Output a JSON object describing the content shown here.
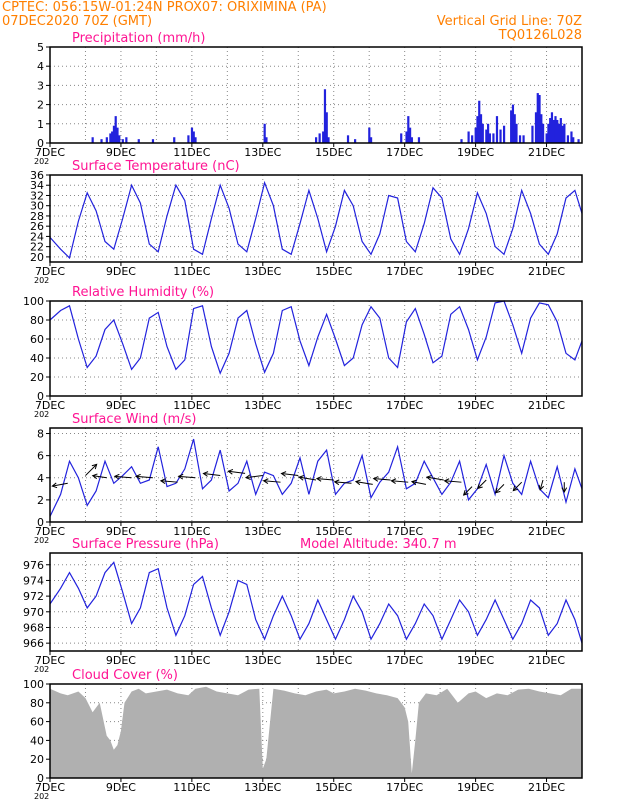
{
  "header": {
    "line1": "CPTEC:   056:15W-01:24N   PROX07: ORIXIMINA (PA)",
    "line2": "07DEC2020 70Z (GMT)",
    "grid_note": "Vertical Grid Line: 70Z",
    "code": "TQ0126L028"
  },
  "colors": {
    "header": "#ff7f00",
    "title": "#ff1493",
    "series": "#2222dd",
    "cloud_fill": "#b0b0b0",
    "axis": "#000000",
    "grid": "#888888"
  },
  "x_tick_labels": [
    "7DEC",
    "9DEC",
    "11DEC",
    "13DEC",
    "15DEC",
    "17DEC",
    "19DEC",
    "21DEC"
  ],
  "x_tick_days": [
    0,
    2,
    4,
    6,
    8,
    10,
    12,
    14
  ],
  "x_range_days": [
    0,
    15
  ],
  "year_fragment": "202",
  "chart_data": [
    {
      "id": "precip",
      "type": "bar",
      "title": "Precipitation  (mm/h)",
      "ylim": [
        0,
        5
      ],
      "yticks": [
        0,
        1,
        2,
        3,
        4,
        5
      ],
      "bars": [
        [
          1.2,
          0.3
        ],
        [
          1.45,
          0.2
        ],
        [
          1.6,
          0.3
        ],
        [
          1.7,
          0.5
        ],
        [
          1.75,
          0.6
        ],
        [
          1.8,
          0.9
        ],
        [
          1.85,
          1.4
        ],
        [
          1.9,
          0.8
        ],
        [
          1.95,
          0.4
        ],
        [
          2.05,
          0.2
        ],
        [
          2.15,
          0.3
        ],
        [
          2.5,
          0.2
        ],
        [
          2.9,
          0.2
        ],
        [
          3.5,
          0.3
        ],
        [
          3.9,
          0.4
        ],
        [
          4.0,
          0.8
        ],
        [
          4.05,
          0.6
        ],
        [
          4.1,
          0.3
        ],
        [
          6.05,
          1.0
        ],
        [
          6.1,
          0.3
        ],
        [
          7.5,
          0.3
        ],
        [
          7.6,
          0.5
        ],
        [
          7.7,
          0.6
        ],
        [
          7.75,
          2.8
        ],
        [
          7.8,
          1.6
        ],
        [
          7.85,
          0.3
        ],
        [
          8.4,
          0.4
        ],
        [
          8.6,
          0.2
        ],
        [
          9.0,
          0.8
        ],
        [
          9.05,
          0.3
        ],
        [
          9.9,
          0.5
        ],
        [
          10.05,
          0.6
        ],
        [
          10.1,
          1.4
        ],
        [
          10.15,
          0.8
        ],
        [
          10.2,
          0.3
        ],
        [
          10.4,
          0.3
        ],
        [
          11.6,
          0.2
        ],
        [
          11.8,
          0.6
        ],
        [
          11.9,
          0.4
        ],
        [
          12.0,
          0.8
        ],
        [
          12.05,
          1.4
        ],
        [
          12.1,
          2.2
        ],
        [
          12.15,
          1.5
        ],
        [
          12.2,
          1.0
        ],
        [
          12.3,
          0.7
        ],
        [
          12.35,
          1.0
        ],
        [
          12.4,
          0.5
        ],
        [
          12.5,
          0.5
        ],
        [
          12.6,
          1.4
        ],
        [
          12.7,
          0.7
        ],
        [
          12.8,
          0.9
        ],
        [
          13.0,
          1.7
        ],
        [
          13.05,
          2.0
        ],
        [
          13.1,
          1.5
        ],
        [
          13.15,
          1.0
        ],
        [
          13.25,
          0.4
        ],
        [
          13.35,
          0.4
        ],
        [
          13.6,
          0.9
        ],
        [
          13.7,
          1.6
        ],
        [
          13.75,
          2.6
        ],
        [
          13.8,
          2.5
        ],
        [
          13.85,
          1.5
        ],
        [
          13.9,
          1.0
        ],
        [
          14.0,
          0.5
        ],
        [
          14.05,
          1.0
        ],
        [
          14.1,
          1.3
        ],
        [
          14.15,
          1.6
        ],
        [
          14.2,
          1.2
        ],
        [
          14.25,
          1.4
        ],
        [
          14.3,
          1.2
        ],
        [
          14.35,
          1.0
        ],
        [
          14.4,
          1.3
        ],
        [
          14.45,
          0.9
        ],
        [
          14.5,
          1.0
        ],
        [
          14.6,
          0.4
        ],
        [
          14.7,
          0.6
        ],
        [
          14.75,
          0.3
        ],
        [
          14.9,
          0.2
        ]
      ]
    },
    {
      "id": "temp",
      "type": "line",
      "title": "Surface Temperature  (nC)",
      "ylim": [
        19,
        36
      ],
      "yticks": [
        20,
        22,
        24,
        26,
        28,
        30,
        32,
        34,
        36
      ],
      "t": [
        0,
        0.3,
        0.55,
        0.8,
        1.05,
        1.3,
        1.55,
        1.8,
        2.05,
        2.3,
        2.55,
        2.8,
        3.05,
        3.3,
        3.55,
        3.8,
        4.05,
        4.3,
        4.55,
        4.8,
        5.05,
        5.3,
        5.55,
        5.8,
        6.05,
        6.3,
        6.55,
        6.8,
        7.05,
        7.3,
        7.55,
        7.8,
        8.05,
        8.3,
        8.55,
        8.8,
        9.05,
        9.3,
        9.55,
        9.8,
        10.05,
        10.3,
        10.55,
        10.8,
        11.05,
        11.3,
        11.55,
        11.8,
        12.05,
        12.3,
        12.55,
        12.8,
        13.05,
        13.3,
        13.55,
        13.8,
        14.05,
        14.3,
        14.55,
        14.8,
        15.0
      ],
      "v": [
        23.8,
        21.5,
        19.8,
        27.0,
        32.5,
        29.0,
        23.0,
        21.5,
        27.5,
        34.0,
        30.5,
        22.5,
        21.0,
        28.0,
        34.0,
        31.0,
        21.5,
        20.5,
        27.5,
        34.0,
        29.5,
        22.5,
        21.0,
        27.5,
        34.5,
        30.0,
        21.5,
        20.5,
        26.5,
        33.0,
        27.5,
        21.0,
        26.0,
        33.0,
        30.0,
        23.0,
        20.5,
        24.5,
        32.0,
        31.5,
        23.0,
        21.0,
        26.5,
        33.5,
        31.5,
        23.5,
        20.5,
        25.5,
        32.5,
        28.5,
        22.0,
        20.5,
        25.5,
        33.0,
        28.5,
        22.5,
        20.5,
        24.5,
        31.5,
        33.0,
        28.5
      ]
    },
    {
      "id": "rh",
      "type": "line",
      "title": "Relative Humidity  (%)",
      "ylim": [
        0,
        100
      ],
      "yticks": [
        0,
        20,
        40,
        60,
        80,
        100
      ],
      "t": [
        0,
        0.3,
        0.55,
        0.8,
        1.05,
        1.3,
        1.55,
        1.8,
        2.05,
        2.3,
        2.55,
        2.8,
        3.05,
        3.3,
        3.55,
        3.8,
        4.05,
        4.3,
        4.55,
        4.8,
        5.05,
        5.3,
        5.55,
        5.8,
        6.05,
        6.3,
        6.55,
        6.8,
        7.05,
        7.3,
        7.55,
        7.8,
        8.05,
        8.3,
        8.55,
        8.8,
        9.05,
        9.3,
        9.55,
        9.8,
        10.05,
        10.3,
        10.55,
        10.8,
        11.05,
        11.3,
        11.55,
        11.8,
        12.05,
        12.3,
        12.55,
        12.8,
        13.05,
        13.3,
        13.55,
        13.8,
        14.05,
        14.3,
        14.55,
        14.8,
        15.0
      ],
      "v": [
        80,
        90,
        95,
        60,
        30,
        42,
        70,
        80,
        55,
        28,
        40,
        82,
        88,
        52,
        28,
        38,
        92,
        95,
        52,
        24,
        45,
        82,
        90,
        55,
        25,
        45,
        90,
        94,
        58,
        32,
        62,
        86,
        60,
        32,
        40,
        75,
        94,
        82,
        40,
        30,
        78,
        92,
        65,
        35,
        42,
        86,
        94,
        70,
        38,
        62,
        98,
        100,
        75,
        45,
        82,
        98,
        96,
        78,
        45,
        38,
        58
      ]
    },
    {
      "id": "wind",
      "type": "line",
      "title": "Surface Wind  (m/s)",
      "ylim": [
        0,
        8.5
      ],
      "yticks": [
        0,
        2,
        4,
        6,
        8
      ],
      "t": [
        0,
        0.3,
        0.55,
        0.8,
        1.05,
        1.3,
        1.55,
        1.8,
        2.05,
        2.3,
        2.55,
        2.8,
        3.05,
        3.3,
        3.55,
        3.8,
        4.05,
        4.3,
        4.55,
        4.8,
        5.05,
        5.3,
        5.55,
        5.8,
        6.05,
        6.3,
        6.55,
        6.8,
        7.05,
        7.3,
        7.55,
        7.8,
        8.05,
        8.3,
        8.55,
        8.8,
        9.05,
        9.3,
        9.55,
        9.8,
        10.05,
        10.3,
        10.55,
        10.8,
        11.05,
        11.3,
        11.55,
        11.8,
        12.05,
        12.3,
        12.55,
        12.8,
        13.05,
        13.3,
        13.55,
        13.8,
        14.05,
        14.3,
        14.55,
        14.8,
        15.0
      ],
      "v": [
        0.5,
        2.5,
        5.5,
        4.0,
        1.5,
        2.8,
        5.5,
        3.5,
        4.2,
        5.0,
        3.5,
        3.8,
        6.8,
        3.2,
        3.5,
        4.8,
        7.5,
        3.0,
        3.8,
        6.5,
        2.8,
        3.5,
        5.5,
        2.5,
        4.5,
        4.2,
        2.5,
        3.5,
        5.8,
        2.5,
        5.5,
        6.5,
        2.5,
        3.5,
        3.8,
        6.0,
        2.2,
        3.6,
        4.5,
        6.8,
        3.0,
        3.5,
        5.5,
        4.0,
        2.5,
        3.6,
        5.5,
        2.0,
        3.0,
        5.2,
        2.5,
        6.0,
        3.5,
        2.5,
        5.5,
        3.0,
        2.2,
        5.0,
        1.8,
        4.8,
        3.0
      ],
      "arrows": [
        [
          0.5,
          3.5,
          -0.55,
          -0.2
        ],
        [
          1.0,
          4.2,
          0.4,
          0.8
        ],
        [
          1.6,
          4.0,
          -0.5,
          0.15
        ],
        [
          2.3,
          4.0,
          -0.6,
          0.1
        ],
        [
          2.9,
          4.0,
          -0.6,
          0.1
        ],
        [
          3.6,
          3.6,
          -0.6,
          0.1
        ],
        [
          4.1,
          4.0,
          -0.6,
          0.1
        ],
        [
          4.8,
          4.2,
          -0.6,
          0.15
        ],
        [
          5.5,
          4.4,
          -0.6,
          0.15
        ],
        [
          6.0,
          4.2,
          -0.6,
          -0.15
        ],
        [
          6.5,
          3.6,
          -0.6,
          0.1
        ],
        [
          7.0,
          4.2,
          -0.6,
          0.15
        ],
        [
          7.5,
          3.8,
          -0.6,
          0.2
        ],
        [
          8.0,
          3.8,
          -0.6,
          0.1
        ],
        [
          8.5,
          3.5,
          -0.6,
          0.1
        ],
        [
          9.1,
          3.4,
          -0.6,
          0.2
        ],
        [
          9.6,
          3.8,
          -0.6,
          0.1
        ],
        [
          10.1,
          3.6,
          -0.6,
          0.1
        ],
        [
          10.6,
          3.4,
          -0.5,
          0.2
        ],
        [
          11.1,
          3.8,
          -0.6,
          0.2
        ],
        [
          11.6,
          3.6,
          -0.6,
          0.1
        ],
        [
          11.9,
          3.2,
          -0.3,
          -0.6
        ],
        [
          12.3,
          3.8,
          -0.3,
          -0.6
        ],
        [
          12.8,
          3.4,
          -0.3,
          -0.6
        ],
        [
          13.3,
          3.6,
          -0.3,
          -0.6
        ],
        [
          13.9,
          3.8,
          -0.1,
          -0.7
        ],
        [
          14.5,
          3.6,
          0.0,
          -0.7
        ]
      ]
    },
    {
      "id": "pres",
      "type": "line",
      "title": "Surface Pressure  (hPa)",
      "subtitle": "Model Altitude: 340.7  m",
      "ylim": [
        965,
        977.5
      ],
      "yticks": [
        966,
        968,
        970,
        972,
        974,
        976
      ],
      "t": [
        0,
        0.3,
        0.55,
        0.8,
        1.05,
        1.3,
        1.55,
        1.8,
        2.05,
        2.3,
        2.55,
        2.8,
        3.05,
        3.3,
        3.55,
        3.8,
        4.05,
        4.3,
        4.55,
        4.8,
        5.05,
        5.3,
        5.55,
        5.8,
        6.05,
        6.3,
        6.55,
        6.8,
        7.05,
        7.3,
        7.55,
        7.8,
        8.05,
        8.3,
        8.55,
        8.8,
        9.05,
        9.3,
        9.55,
        9.8,
        10.05,
        10.3,
        10.55,
        10.8,
        11.05,
        11.3,
        11.55,
        11.8,
        12.05,
        12.3,
        12.55,
        12.8,
        13.05,
        13.3,
        13.55,
        13.8,
        14.05,
        14.3,
        14.55,
        14.8,
        15.0
      ],
      "v": [
        971,
        973,
        975,
        973,
        970.5,
        972,
        975,
        976.3,
        972.5,
        968.5,
        970.5,
        975,
        975.5,
        970.5,
        967,
        969.5,
        973.5,
        974.5,
        970.5,
        967,
        970,
        974,
        973.5,
        969,
        966.5,
        969.5,
        972,
        969.5,
        966.5,
        968.5,
        971.5,
        969,
        966.5,
        969,
        972,
        970,
        966.5,
        968.5,
        971,
        969.5,
        966.5,
        968.5,
        971,
        969.5,
        966.5,
        969,
        971.5,
        970,
        967,
        969,
        971.5,
        969,
        966.5,
        968.5,
        971.5,
        970.5,
        967,
        968.5,
        971.5,
        969,
        966
      ]
    },
    {
      "id": "cloud",
      "type": "area",
      "title": "Cloud Cover  (%)",
      "ylim": [
        0,
        100
      ],
      "yticks": [
        0,
        20,
        40,
        60,
        80,
        100
      ],
      "t": [
        0,
        0.3,
        0.5,
        0.8,
        1.0,
        1.2,
        1.4,
        1.6,
        1.7,
        1.8,
        1.9,
        2.0,
        2.1,
        2.3,
        2.5,
        2.7,
        3.0,
        3.3,
        3.6,
        3.9,
        4.1,
        4.4,
        4.7,
        5.0,
        5.3,
        5.6,
        5.9,
        6.0,
        6.1,
        6.3,
        6.6,
        6.9,
        7.2,
        7.5,
        7.8,
        8.0,
        8.3,
        8.6,
        8.9,
        9.2,
        9.5,
        9.8,
        10.0,
        10.1,
        10.2,
        10.3,
        10.4,
        10.6,
        10.9,
        11.2,
        11.5,
        11.8,
        12.0,
        12.3,
        12.6,
        12.9,
        13.2,
        13.5,
        13.8,
        14.1,
        14.4,
        14.7,
        15.0
      ],
      "v": [
        95,
        90,
        88,
        92,
        85,
        70,
        80,
        45,
        40,
        30,
        35,
        50,
        80,
        92,
        95,
        90,
        92,
        94,
        90,
        88,
        95,
        97,
        92,
        90,
        88,
        94,
        95,
        10,
        20,
        95,
        93,
        90,
        88,
        92,
        94,
        90,
        92,
        95,
        93,
        90,
        88,
        85,
        75,
        60,
        5,
        40,
        80,
        90,
        88,
        95,
        80,
        90,
        92,
        85,
        90,
        88,
        94,
        95,
        92,
        90,
        88,
        95,
        95
      ]
    }
  ]
}
